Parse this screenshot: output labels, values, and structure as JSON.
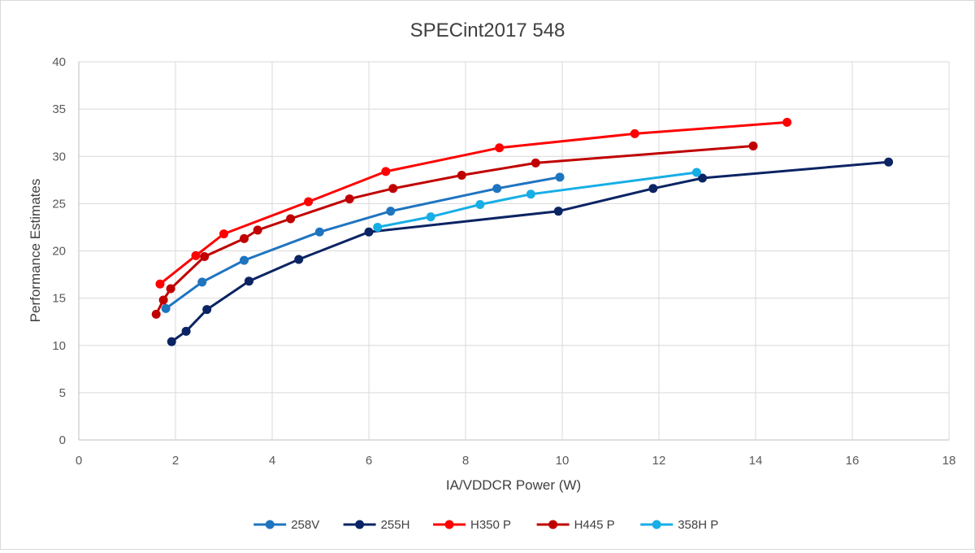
{
  "chart_data": {
    "type": "line",
    "title": "SPECint2017 548",
    "xlabel": "IA/VDDCR Power (W)",
    "ylabel": "Performance Estimates",
    "xlim": [
      0,
      18
    ],
    "ylim": [
      0,
      40
    ],
    "xticks": [
      0,
      2,
      4,
      6,
      8,
      10,
      12,
      14,
      16,
      18
    ],
    "yticks": [
      0,
      5,
      10,
      15,
      20,
      25,
      30,
      35,
      40
    ],
    "grid": true,
    "legend_position": "bottom",
    "series": [
      {
        "name": "258V",
        "color": "#1f74c0",
        "points": [
          [
            1.8,
            13.9
          ],
          [
            2.55,
            16.7
          ],
          [
            3.42,
            19.0
          ],
          [
            4.98,
            22.0
          ],
          [
            6.45,
            24.2
          ],
          [
            8.65,
            26.6
          ],
          [
            9.95,
            27.8
          ]
        ]
      },
      {
        "name": "255H",
        "color": "#0b2463",
        "points": [
          [
            1.92,
            10.4
          ],
          [
            2.22,
            11.5
          ],
          [
            2.65,
            13.8
          ],
          [
            3.52,
            16.8
          ],
          [
            4.55,
            19.1
          ],
          [
            6.0,
            22.0
          ],
          [
            9.92,
            24.2
          ],
          [
            11.88,
            26.6
          ],
          [
            12.9,
            27.7
          ],
          [
            16.75,
            29.4
          ]
        ]
      },
      {
        "name": "H350 P",
        "color": "#ff0000",
        "points": [
          [
            1.68,
            16.5
          ],
          [
            2.42,
            19.5
          ],
          [
            3.0,
            21.8
          ],
          [
            4.75,
            25.2
          ],
          [
            6.35,
            28.4
          ],
          [
            8.7,
            30.9
          ],
          [
            11.5,
            32.4
          ],
          [
            14.65,
            33.6
          ]
        ]
      },
      {
        "name": "H445 P",
        "color": "#c00000",
        "points": [
          [
            1.6,
            13.3
          ],
          [
            1.75,
            14.8
          ],
          [
            1.9,
            16.0
          ],
          [
            2.6,
            19.4
          ],
          [
            3.42,
            21.3
          ],
          [
            3.7,
            22.2
          ],
          [
            4.38,
            23.4
          ],
          [
            5.6,
            25.5
          ],
          [
            6.5,
            26.6
          ],
          [
            7.92,
            28.0
          ],
          [
            9.45,
            29.3
          ],
          [
            13.95,
            31.1
          ]
        ]
      },
      {
        "name": "358H P",
        "color": "#17aee6",
        "points": [
          [
            6.18,
            22.5
          ],
          [
            7.28,
            23.6
          ],
          [
            8.3,
            24.9
          ],
          [
            9.35,
            26.0
          ],
          [
            12.78,
            28.3
          ]
        ]
      }
    ]
  }
}
